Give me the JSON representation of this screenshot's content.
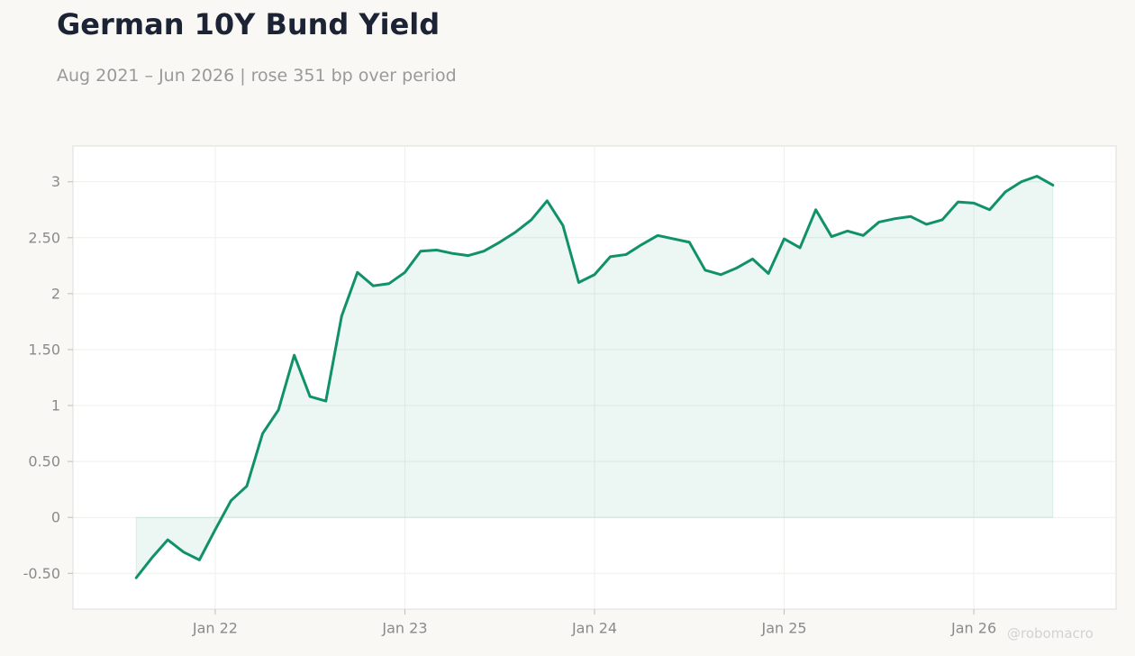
{
  "header": {
    "title": "German 10Y Bund Yield",
    "subtitle": "Aug 2021 – Jun 2026 | rose 351 bp over period"
  },
  "watermark": "@robomacro",
  "colors": {
    "line": "#11916a",
    "fill": "#11916a",
    "background": "#f9f8f5",
    "plot_background": "#ffffff"
  },
  "chart_data": {
    "type": "area",
    "title": "German 10Y Bund Yield",
    "subtitle": "Aug 2021 – Jun 2026 | rose 351 bp over period",
    "xlabel": "",
    "ylabel": "",
    "x": [
      "2021-08",
      "2021-09",
      "2021-10",
      "2021-11",
      "2021-12",
      "2022-01",
      "2022-02",
      "2022-03",
      "2022-04",
      "2022-05",
      "2022-06",
      "2022-07",
      "2022-08",
      "2022-09",
      "2022-10",
      "2022-11",
      "2022-12",
      "2023-01",
      "2023-02",
      "2023-03",
      "2023-04",
      "2023-05",
      "2023-06",
      "2023-07",
      "2023-08",
      "2023-09",
      "2023-10",
      "2023-11",
      "2023-12",
      "2024-01",
      "2024-02",
      "2024-03",
      "2024-04",
      "2024-05",
      "2024-06",
      "2024-07",
      "2024-08",
      "2024-09",
      "2024-10",
      "2024-11",
      "2024-12",
      "2025-01",
      "2025-02",
      "2025-03",
      "2025-04",
      "2025-05",
      "2025-06",
      "2025-07",
      "2025-08",
      "2025-09",
      "2025-10",
      "2025-11",
      "2025-12",
      "2026-01",
      "2026-02",
      "2026-03",
      "2026-04",
      "2026-05",
      "2026-06"
    ],
    "series": [
      {
        "values": [
          -0.54,
          -0.36,
          -0.2,
          -0.31,
          -0.38,
          -0.11,
          0.15,
          0.28,
          0.75,
          0.96,
          1.45,
          1.08,
          1.04,
          1.8,
          2.19,
          2.07,
          2.09,
          2.19,
          2.38,
          2.39,
          2.36,
          2.34,
          2.38,
          2.46,
          2.55,
          2.66,
          2.83,
          2.61,
          2.1,
          2.17,
          2.33,
          2.35,
          2.44,
          2.52,
          2.49,
          2.46,
          2.21,
          2.17,
          2.23,
          2.31,
          2.18,
          2.49,
          2.41,
          2.75,
          2.51,
          2.56,
          2.52,
          2.64,
          2.67,
          2.69,
          2.62,
          2.66,
          2.82,
          2.81,
          2.75,
          2.91,
          3.0,
          3.05,
          2.97
        ]
      }
    ],
    "x_tick_labels": [
      "Jan 22",
      "Jan 23",
      "Jan 24",
      "Jan 25",
      "Jan 26"
    ],
    "y_ticks": [
      -0.5,
      0,
      0.5,
      1,
      1.5,
      2,
      2.5,
      3
    ],
    "y_tick_labels": [
      "-0.50",
      "0",
      "0.50",
      "1",
      "1.50",
      "2",
      "2.50",
      "3"
    ],
    "ylim": [
      -0.82,
      3.32
    ],
    "xlim": [
      "2021-04",
      "2026-10"
    ],
    "grid": true,
    "legend": "none"
  }
}
